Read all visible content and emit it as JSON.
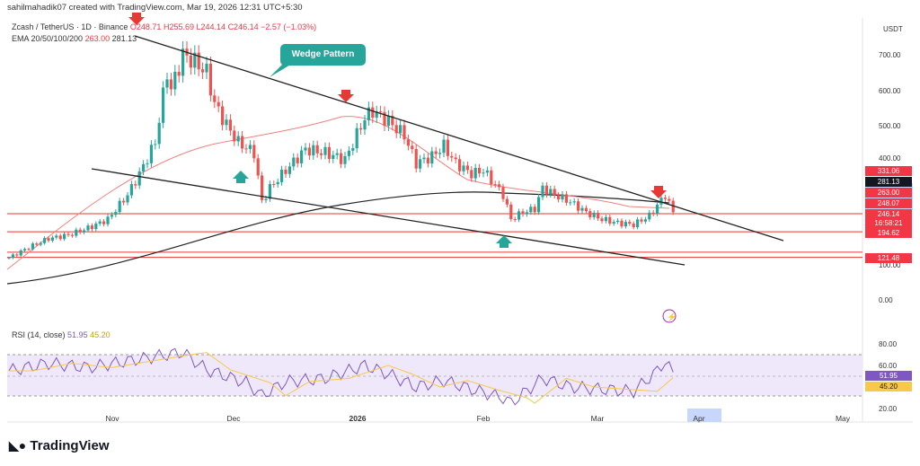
{
  "header": {
    "credit": "sahilmahadik07 created with TradingView.com, Mar 19, 2026 12:31 UTC+5:30",
    "symbol": "Zcash / TetherUS · 1D · Binance",
    "open": "O248.71",
    "high": "H255.69",
    "low": "L244.14",
    "close": "C246.14",
    "change": "−2.57 (−1.03%)",
    "ema_label": "EMA 20/50/100/200",
    "ema_a": "263.00",
    "ema_b": "281.13"
  },
  "currency": "USDT",
  "annotation": "Wedge Pattern",
  "price_axis": [
    "700.00",
    "600.00",
    "500.00",
    "400.00",
    "100.00",
    "0.00"
  ],
  "price_tags": [
    {
      "v": "331.06",
      "c": "#f23645"
    },
    {
      "v": "281.13",
      "c": "#131722"
    },
    {
      "v": "263.00",
      "c": "#f23645"
    },
    {
      "v": "248.07",
      "c": "#f23645"
    },
    {
      "v": "246.14",
      "c": "#f23645"
    },
    {
      "v": "16:58:21",
      "c": "#f23645"
    },
    {
      "v": "194.62",
      "c": "#f23645"
    },
    {
      "v": "121.48",
      "c": "#f23645"
    }
  ],
  "rsi": {
    "label": "RSI (14, close)",
    "v1": "51.95",
    "v2": "45.20",
    "axis": [
      "80.00",
      "60.00",
      "20.00"
    ]
  },
  "time_axis": [
    "Nov",
    "Dec",
    "2026",
    "Feb",
    "Mar",
    "Apr",
    "May"
  ],
  "logo": "TradingView",
  "chart_data": {
    "type": "candlestick",
    "title": "Zcash / TetherUS 1D",
    "ylabel": "USDT",
    "ylim": [
      0,
      760
    ],
    "levels": [
      331.06,
      246.14,
      194.62,
      121.48
    ],
    "keypoints": [
      [
        0,
        120
      ],
      [
        5,
        150
      ],
      [
        10,
        175
      ],
      [
        15,
        185
      ],
      [
        20,
        205
      ],
      [
        25,
        230
      ],
      [
        30,
        300
      ],
      [
        33,
        360
      ],
      [
        37,
        450
      ],
      [
        40,
        650
      ],
      [
        41,
        600
      ],
      [
        44,
        700
      ],
      [
        47,
        680
      ],
      [
        50,
        650
      ],
      [
        52,
        560
      ],
      [
        55,
        500
      ],
      [
        58,
        450
      ],
      [
        62,
        420
      ],
      [
        64,
        280
      ],
      [
        66,
        320
      ],
      [
        70,
        370
      ],
      [
        75,
        430
      ],
      [
        80,
        420
      ],
      [
        85,
        400
      ],
      [
        90,
        520
      ],
      [
        92,
        540
      ],
      [
        96,
        510
      ],
      [
        100,
        470
      ],
      [
        103,
        390
      ],
      [
        107,
        410
      ],
      [
        110,
        440
      ],
      [
        113,
        390
      ],
      [
        117,
        360
      ],
      [
        120,
        370
      ],
      [
        125,
        300
      ],
      [
        127,
        230
      ],
      [
        130,
        250
      ],
      [
        133,
        260
      ],
      [
        135,
        320
      ],
      [
        138,
        300
      ],
      [
        142,
        280
      ],
      [
        146,
        250
      ],
      [
        150,
        230
      ],
      [
        154,
        220
      ],
      [
        158,
        215
      ],
      [
        162,
        240
      ],
      [
        166,
        300
      ],
      [
        168,
        250
      ]
    ],
    "rsi_keypoints": [
      [
        0,
        55
      ],
      [
        10,
        62
      ],
      [
        20,
        58
      ],
      [
        30,
        64
      ],
      [
        40,
        70
      ],
      [
        44,
        72
      ],
      [
        50,
        56
      ],
      [
        60,
        44
      ],
      [
        64,
        32
      ],
      [
        70,
        45
      ],
      [
        80,
        48
      ],
      [
        90,
        60
      ],
      [
        96,
        52
      ],
      [
        103,
        40
      ],
      [
        110,
        46
      ],
      [
        117,
        38
      ],
      [
        125,
        30
      ],
      [
        127,
        25
      ],
      [
        135,
        48
      ],
      [
        142,
        40
      ],
      [
        150,
        38
      ],
      [
        158,
        36
      ],
      [
        164,
        55
      ],
      [
        166,
        64
      ],
      [
        168,
        52
      ]
    ]
  }
}
